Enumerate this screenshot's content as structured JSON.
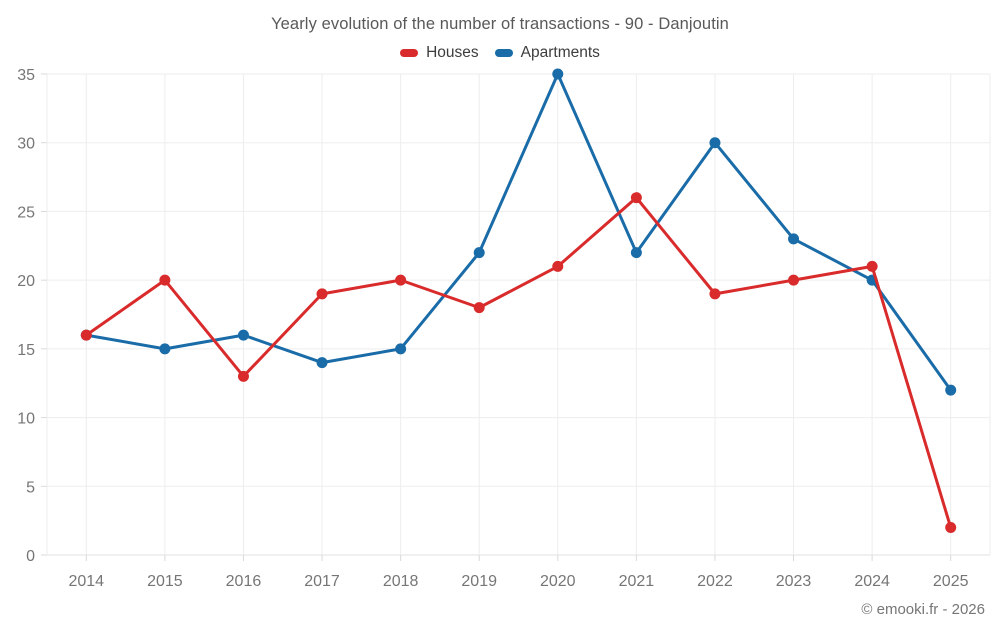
{
  "page": {
    "title": "Yearly evolution of the number of transactions - 90 - Danjoutin",
    "footer": "© emooki.fr - 2026"
  },
  "legend": [
    {
      "label": "Houses",
      "color": "#d92b2b"
    },
    {
      "label": "Apartments",
      "color": "#1a6ca8"
    }
  ],
  "chart_data": {
    "type": "line",
    "title": "Yearly evolution of the number of transactions - 90 - Danjoutin",
    "categories": [
      "2014",
      "2015",
      "2016",
      "2017",
      "2018",
      "2019",
      "2020",
      "2021",
      "2022",
      "2023",
      "2024",
      "2025"
    ],
    "series": [
      {
        "name": "Houses",
        "color": "#d92b2b",
        "values": [
          16,
          20,
          13,
          19,
          20,
          18,
          21,
          26,
          19,
          20,
          21,
          2
        ]
      },
      {
        "name": "Apartments",
        "color": "#1a6ca8",
        "values": [
          16,
          15,
          16,
          14,
          15,
          22,
          35,
          22,
          30,
          23,
          20,
          12
        ]
      }
    ],
    "xlabel": "",
    "ylabel": "",
    "ylim": [
      0,
      35
    ],
    "ytick_step": 5,
    "grid": true,
    "legend_position": "top",
    "colors": {
      "grid": "#ededed",
      "axis": "#e0e0e0",
      "tick": "#d9d9d9",
      "tick_label": "#767676"
    }
  }
}
